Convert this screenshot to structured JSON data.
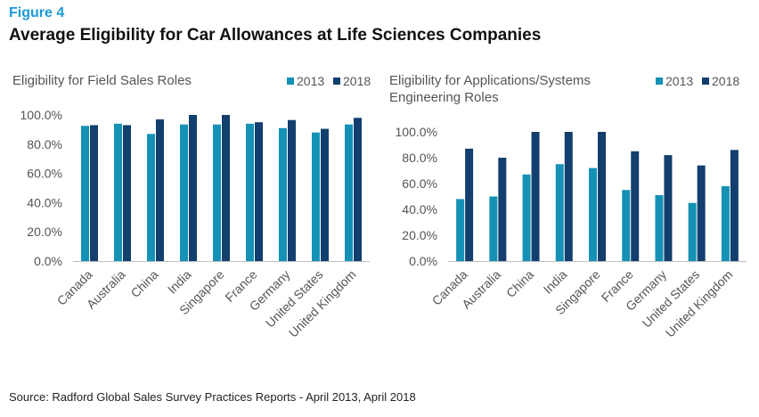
{
  "figure": {
    "label": "Figure 4",
    "title": "Average Eligibility for Car Allowances at Life Sciences Companies",
    "source": "Source: Radford Global Sales Survey Practices Reports - April 2013, April 2018"
  },
  "colors": {
    "s2013": "#1591b5",
    "s2018": "#123f6e",
    "axis": "#bfbfbf"
  },
  "chart_data": [
    {
      "type": "bar",
      "title": [
        "Eligibility for Field Sales Roles"
      ],
      "categories": [
        "Canada",
        "Australia",
        "China",
        "India",
        "Singapore",
        "France",
        "Germany",
        "United States",
        "United Kingdom"
      ],
      "series": [
        {
          "name": "2013",
          "values": [
            92.5,
            94,
            87,
            93.5,
            93.5,
            94,
            91,
            88,
            93.5
          ]
        },
        {
          "name": "2018",
          "values": [
            93,
            93,
            97,
            100,
            100,
            95,
            96.5,
            90.5,
            98
          ]
        }
      ],
      "yticks": [
        "0.0%",
        "20.0%",
        "40.0%",
        "60.0%",
        "80.0%",
        "100.0%"
      ],
      "ylim": [
        0,
        100
      ],
      "legend": "top-right",
      "grid": false
    },
    {
      "type": "bar",
      "title": [
        "Eligibility for Applications/Systems",
        "Engineering Roles"
      ],
      "categories": [
        "Canada",
        "Australia",
        "China",
        "India",
        "Singapore",
        "France",
        "Germany",
        "United States",
        "United Kingdom"
      ],
      "series": [
        {
          "name": "2013",
          "values": [
            48,
            50,
            67,
            75,
            72,
            55,
            51,
            45,
            58
          ]
        },
        {
          "name": "2018",
          "values": [
            87,
            80,
            100,
            100,
            100,
            85,
            82,
            74,
            86
          ]
        }
      ],
      "yticks": [
        "0.0%",
        "20.0%",
        "40.0%",
        "60.0%",
        "80.0%",
        "100.0%"
      ],
      "ylim": [
        0,
        100
      ],
      "legend": "top-right",
      "grid": false
    }
  ]
}
